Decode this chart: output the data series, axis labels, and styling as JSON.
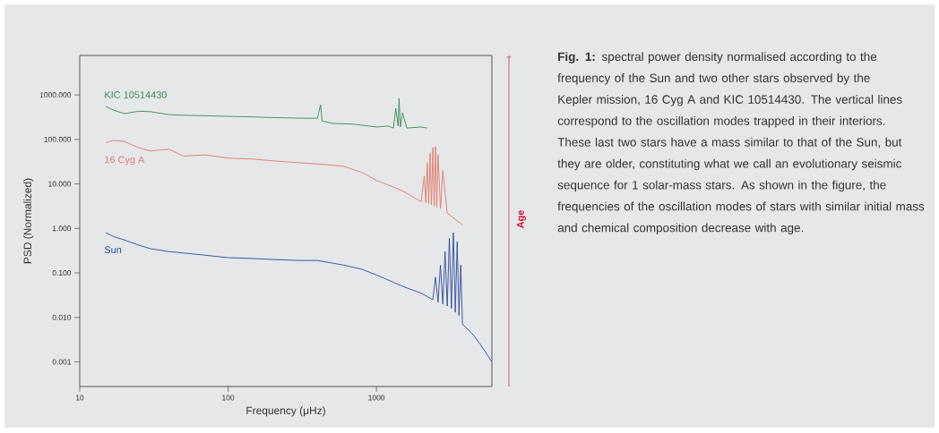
{
  "chart_data": {
    "type": "line",
    "xlabel": "Frequency (μHz)",
    "ylabel": "PSD (Normalized)",
    "log": "xy",
    "xlim": [
      10,
      6000
    ],
    "ylim": [
      0.00028,
      7700
    ],
    "xticks": [
      10,
      100,
      1000
    ],
    "yticks": [
      {
        "value": 0.001,
        "label": "0.001"
      },
      {
        "value": 0.01,
        "label": "0.010"
      },
      {
        "value": 0.1,
        "label": "0.100"
      },
      {
        "value": 1,
        "label": "1.000"
      },
      {
        "value": 10,
        "label": "10.000"
      },
      {
        "value": 100,
        "label": "100.000"
      },
      {
        "value": 1000,
        "label": "1000.000"
      }
    ],
    "series": [
      {
        "name": "KIC 10514430",
        "color": "#3a8a5a",
        "x": [
          15,
          17,
          20,
          25,
          30,
          40,
          50,
          70,
          100,
          150,
          200,
          300,
          400,
          420,
          430,
          500,
          700,
          1000,
          1200,
          1300,
          1350,
          1400,
          1420,
          1450,
          1500,
          1600,
          2000,
          2200
        ],
        "values": [
          550,
          450,
          380,
          430,
          420,
          360,
          350,
          340,
          330,
          320,
          310,
          300,
          300,
          600,
          260,
          230,
          220,
          190,
          200,
          180,
          500,
          200,
          830,
          190,
          400,
          180,
          190,
          180
        ]
      },
      {
        "name": "16 Cyg A",
        "color": "#e27a6a",
        "x": [
          15,
          17,
          20,
          25,
          30,
          40,
          50,
          70,
          100,
          150,
          200,
          300,
          400,
          600,
          800,
          1000,
          1500,
          2000,
          2100,
          2150,
          2200,
          2250,
          2300,
          2350,
          2400,
          2450,
          2500,
          2550,
          2600,
          2700,
          2800,
          3000,
          3400,
          3800
        ],
        "values": [
          85,
          95,
          90,
          65,
          55,
          60,
          42,
          45,
          38,
          36,
          33,
          30,
          28,
          25,
          18,
          12,
          7,
          4,
          15,
          3.8,
          30,
          3.6,
          50,
          3.4,
          65,
          3.2,
          69,
          3,
          45,
          2.8,
          20,
          2.2,
          1.6,
          1.2
        ]
      },
      {
        "name": "Sun",
        "color": "#2a4b9a",
        "x": [
          15,
          17,
          20,
          25,
          30,
          40,
          50,
          70,
          100,
          150,
          200,
          300,
          400,
          600,
          800,
          1000,
          1500,
          2000,
          2400,
          2500,
          2600,
          2700,
          2800,
          2900,
          3000,
          3100,
          3200,
          3300,
          3400,
          3500,
          3600,
          3700,
          3800,
          4000,
          4500,
          5000,
          6000
        ],
        "values": [
          0.8,
          0.65,
          0.55,
          0.42,
          0.35,
          0.3,
          0.28,
          0.25,
          0.22,
          0.21,
          0.2,
          0.19,
          0.19,
          0.15,
          0.12,
          0.09,
          0.05,
          0.035,
          0.025,
          0.08,
          0.022,
          0.15,
          0.02,
          0.3,
          0.018,
          0.6,
          0.016,
          0.8,
          0.013,
          0.5,
          0.011,
          0.15,
          0.007,
          0.006,
          0.004,
          0.0025,
          0.001
        ]
      }
    ],
    "annotations": [
      "Age",
      "**Fig. 1:** spectral power density normalised according to the frequency of the Sun and two other stars observed by the Kepler mission, 16 Cyg A and KIC 10514430. The vertical lines correspond to the oscillation modes trapped in their interiors. These last two stars have a mass similar to that of the Sun, but they are older, constituting what we call an evolutionary seismic sequence for 1 solar-mass stars. As shown in the figure, the frequencies of the oscillation modes of stars with similar initial mass and chemical composition decrease with age."
    ]
  }
}
